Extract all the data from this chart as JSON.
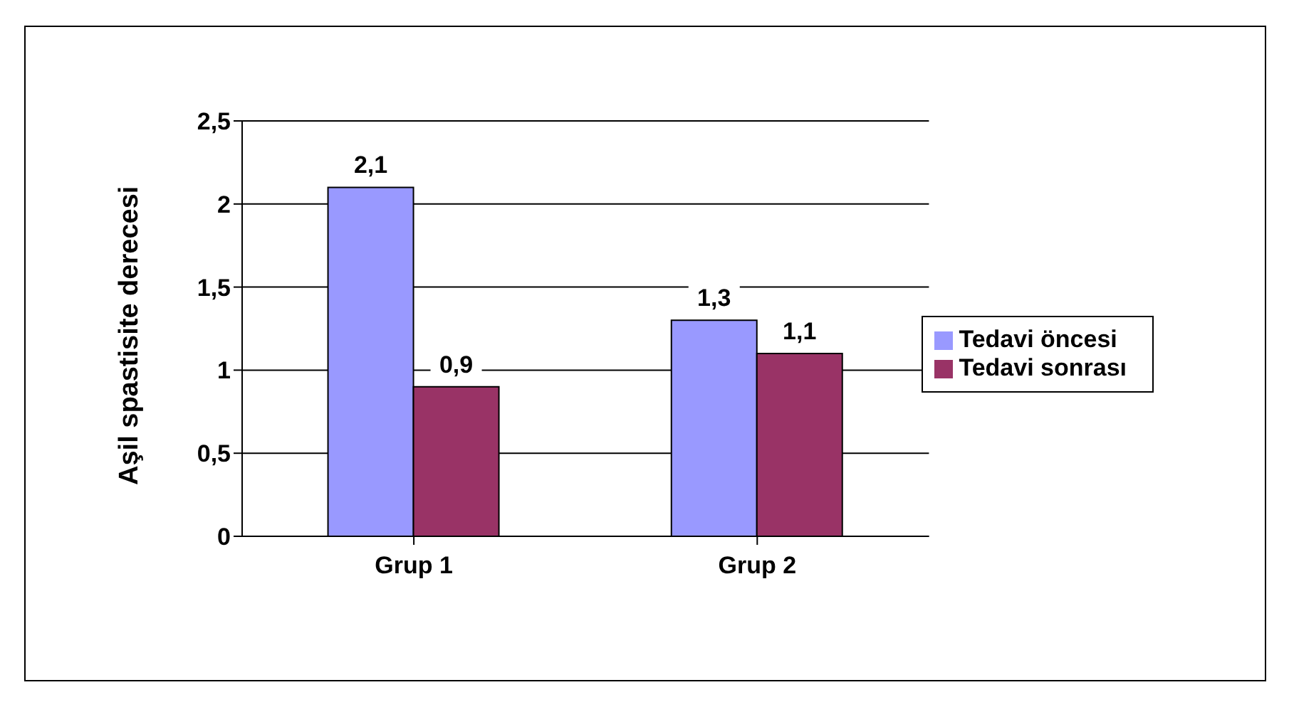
{
  "chart_data": {
    "type": "bar",
    "ylabel": "Aşil spastisite derecesi",
    "categories": [
      "Grup 1",
      "Grup 2"
    ],
    "series": [
      {
        "name": "Tedavi öncesi",
        "color": "#9999ff",
        "values": [
          2.1,
          1.3
        ],
        "value_labels": [
          "2,1",
          "1,3"
        ]
      },
      {
        "name": "Tedavi sonrası",
        "color": "#993366",
        "values": [
          0.9,
          1.1
        ],
        "value_labels": [
          "0,9",
          "1,1"
        ]
      }
    ],
    "ylim": [
      0,
      2.5
    ],
    "yticks": [
      0,
      {
        "value": 0.5,
        "label": "0,5"
      },
      1,
      {
        "value": 1.5,
        "label": "1,5"
      },
      2,
      {
        "value": 2.5,
        "label": "2,5"
      }
    ],
    "grid": "y",
    "legend": "right"
  }
}
